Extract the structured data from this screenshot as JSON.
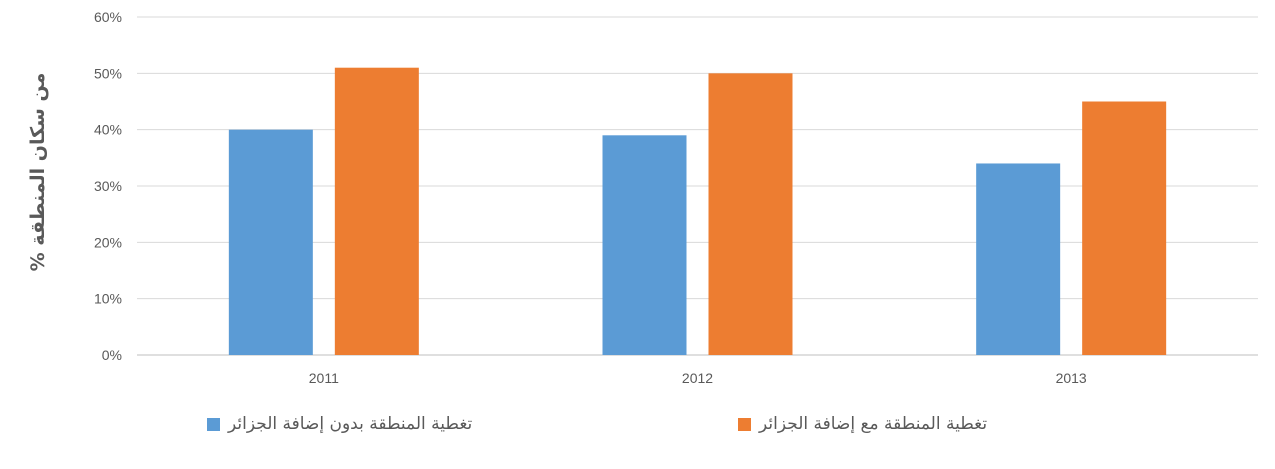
{
  "chart_data": {
    "type": "bar",
    "categories": [
      "2011",
      "2012",
      "2013"
    ],
    "series": [
      {
        "name": "تغطية المنطقة بدون إضافة الجزائر",
        "values": [
          40,
          39,
          34
        ],
        "color": "#5b9bd5"
      },
      {
        "name": "تغطية المنطقة مع إضافة الجزائر",
        "values": [
          51,
          50,
          45
        ],
        "color": "#ed7d31"
      }
    ],
    "title": "",
    "xlabel": "",
    "ylabel": "% من سكان المنطقة",
    "ylim": [
      0,
      60
    ],
    "yticks": [
      "0%",
      "10%",
      "20%",
      "30%",
      "40%",
      "50%",
      "60%"
    ],
    "grid": true,
    "legend": "bottom"
  }
}
